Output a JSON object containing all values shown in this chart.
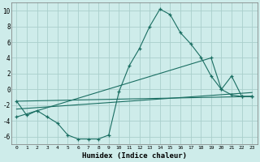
{
  "xlabel": "Humidex (Indice chaleur)",
  "background_color": "#ceecea",
  "grid_color": "#aacfcc",
  "line_color": "#1a6e62",
  "xlim": [
    -0.5,
    23.5
  ],
  "ylim": [
    -7,
    11
  ],
  "xticks": [
    0,
    1,
    2,
    3,
    4,
    5,
    6,
    7,
    8,
    9,
    10,
    11,
    12,
    13,
    14,
    15,
    16,
    17,
    18,
    19,
    20,
    21,
    22,
    23
  ],
  "yticks": [
    -6,
    -4,
    -2,
    0,
    2,
    4,
    6,
    8,
    10
  ],
  "series": [
    {
      "x": [
        0,
        1,
        2,
        3,
        4,
        5,
        6,
        7,
        8,
        9,
        10,
        11,
        12,
        13,
        14,
        15,
        16,
        17,
        18,
        19,
        20,
        21,
        22,
        23
      ],
      "y": [
        -1.5,
        -3.3,
        -2.7,
        -3.5,
        -4.3,
        -5.8,
        -6.3,
        -6.3,
        -6.3,
        -5.8,
        -0.3,
        3.0,
        5.2,
        8.0,
        10.2,
        9.5,
        7.2,
        5.8,
        4.1,
        1.7,
        0.0,
        -0.7,
        -0.9,
        -0.9
      ],
      "marker": true
    },
    {
      "x": [
        0,
        23
      ],
      "y": [
        -1.5,
        -0.9
      ],
      "marker": false
    },
    {
      "x": [
        0,
        23
      ],
      "y": [
        -2.5,
        -0.4
      ],
      "marker": false
    },
    {
      "x": [
        0,
        19,
        20,
        21,
        22,
        23
      ],
      "y": [
        -3.5,
        4.0,
        0.0,
        1.7,
        -0.9,
        -0.9
      ],
      "marker": true
    }
  ]
}
